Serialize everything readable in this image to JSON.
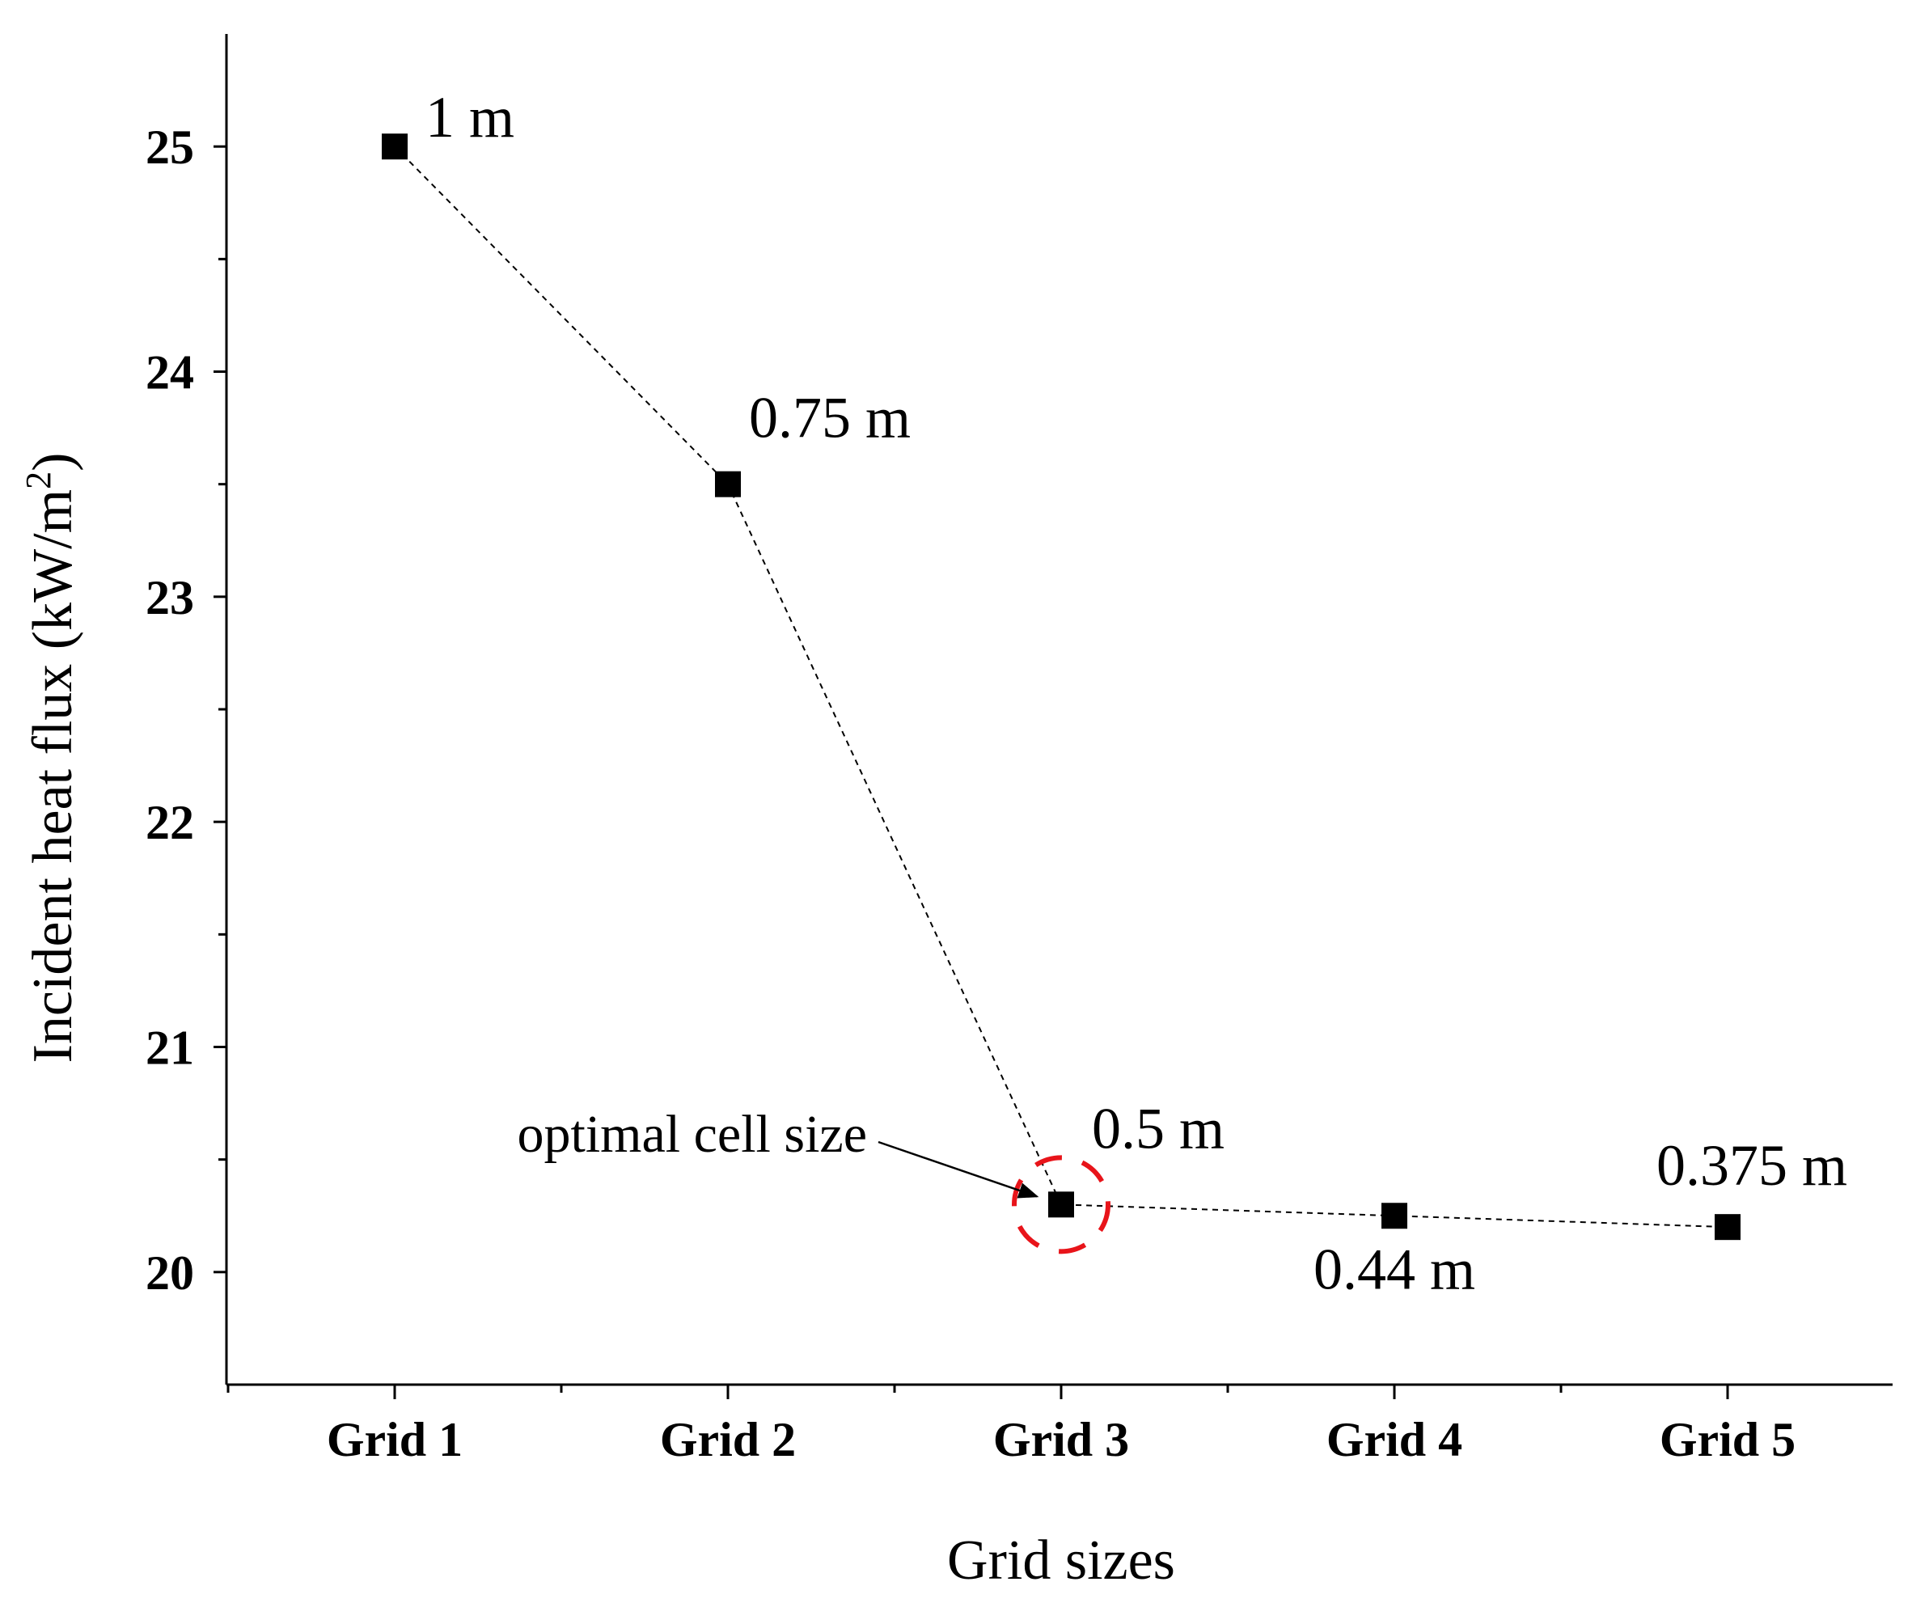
{
  "chart_data": {
    "type": "line",
    "title": "",
    "xlabel": "Grid sizes",
    "ylabel": {
      "main": "Incident heat flux (kW/m",
      "superscript": "2",
      "end": ")"
    },
    "categories": [
      "Grid 1",
      "Grid 2",
      "Grid 3",
      "Grid 4",
      "Grid 5"
    ],
    "series": [
      {
        "name": "Incident heat flux",
        "values": [
          25.0,
          23.5,
          20.3,
          20.25,
          20.2
        ],
        "point_labels": [
          "1 m",
          "0.75 m",
          "0.5 m",
          "0.44 m",
          "0.375 m"
        ],
        "line_style": "dashed",
        "marker": "square",
        "color": "#000000"
      }
    ],
    "ylim": [
      19.5,
      25.5
    ],
    "yticks": [
      20,
      21,
      22,
      23,
      24,
      25
    ],
    "yticks_minor": [
      20.5,
      21.5,
      22.5,
      23.5,
      24.5
    ],
    "grid": false,
    "annotation": {
      "text": "optimal cell size",
      "target_category": "Grid 3",
      "highlight_color": "#e8141a"
    }
  }
}
